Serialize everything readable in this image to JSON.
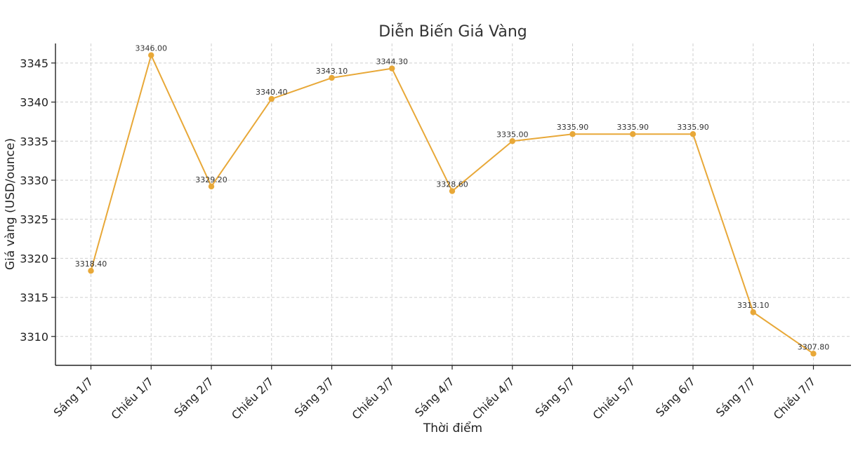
{
  "chart_data": {
    "type": "line",
    "title": "Diễn Biến Giá Vàng",
    "xlabel": "Thời điểm",
    "ylabel": "Giá vàng (USD/ounce)",
    "categories": [
      "Sáng 1/7",
      "Chiều 1/7",
      "Sáng 2/7",
      "Chiều 2/7",
      "Sáng 3/7",
      "Chiều 3/7",
      "Sáng 4/7",
      "Chiều 4/7",
      "Sáng 5/7",
      "Chiều 5/7",
      "Sáng 6/7",
      "Sáng 7/7",
      "Chiều 7/7"
    ],
    "series": [
      {
        "values": [
          3318.4,
          3346.0,
          3329.2,
          3340.4,
          3343.1,
          3344.3,
          3328.6,
          3335.0,
          3335.9,
          3335.9,
          3335.9,
          3313.1,
          3307.8
        ],
        "labels": [
          "3318.40",
          "3346.00",
          "3329.20",
          "3340.40",
          "3343.10",
          "3344.30",
          "3328.60",
          "3335.00",
          "3335.90",
          "3335.90",
          "3335.90",
          "3313.10",
          "3307.80"
        ],
        "color": "#e8a838"
      }
    ],
    "yticks": [
      "3310",
      "3315",
      "3320",
      "3325",
      "3330",
      "3335",
      "3340",
      "3345"
    ],
    "ylim": [
      3306.3,
      3347.5
    ],
    "grid": true,
    "legend": "none"
  }
}
